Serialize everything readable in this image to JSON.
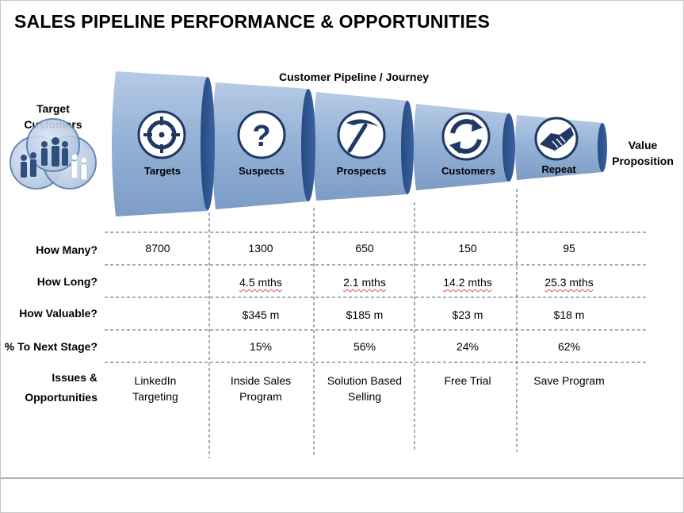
{
  "title": "SALES PIPELINE PERFORMANCE & OPPORTUNITIES",
  "pipeline_label": "Customer Pipeline / Journey",
  "target_customers_label": "Target Customers",
  "value_proposition_label": "Value Proposition",
  "colors": {
    "funnel_fill": "#95b3d7",
    "funnel_ring": "#2f5597",
    "icon_fill": "#1f3864",
    "grid_line": "#4a5b7a"
  },
  "stages": [
    {
      "label": "Targets",
      "icon": "crosshair-icon"
    },
    {
      "label": "Suspects",
      "icon": "question-mark-icon"
    },
    {
      "label": "Prospects",
      "icon": "pickaxe-icon"
    },
    {
      "label": "Customers",
      "icon": "refresh-cycle-icon"
    },
    {
      "label": "Repeat",
      "icon": "handshake-icon"
    }
  ],
  "row_labels": {
    "how_many": "How Many?",
    "how_long": "How Long?",
    "how_valuable": "How Valuable?",
    "next_stage": "% To Next Stage?",
    "issues_line1": "Issues &",
    "issues_line2": "Opportunities"
  },
  "table": {
    "how_many": [
      "8700",
      "1300",
      "650",
      "150",
      "95"
    ],
    "how_long": [
      "",
      "4.5 mths",
      "2.1 mths",
      "14.2 mths",
      "25.3 mths"
    ],
    "how_valuable": [
      "",
      "$345 m",
      "$185 m",
      "$23 m",
      "$18 m"
    ],
    "next_stage": [
      "",
      "15%",
      "56%",
      "24%",
      "62%"
    ],
    "issues": [
      [
        "LinkedIn",
        "Targeting"
      ],
      [
        "Inside Sales",
        "Program"
      ],
      [
        "Solution Based",
        "Selling"
      ],
      [
        "Free Trial",
        ""
      ],
      [
        "Save Program",
        ""
      ]
    ]
  }
}
